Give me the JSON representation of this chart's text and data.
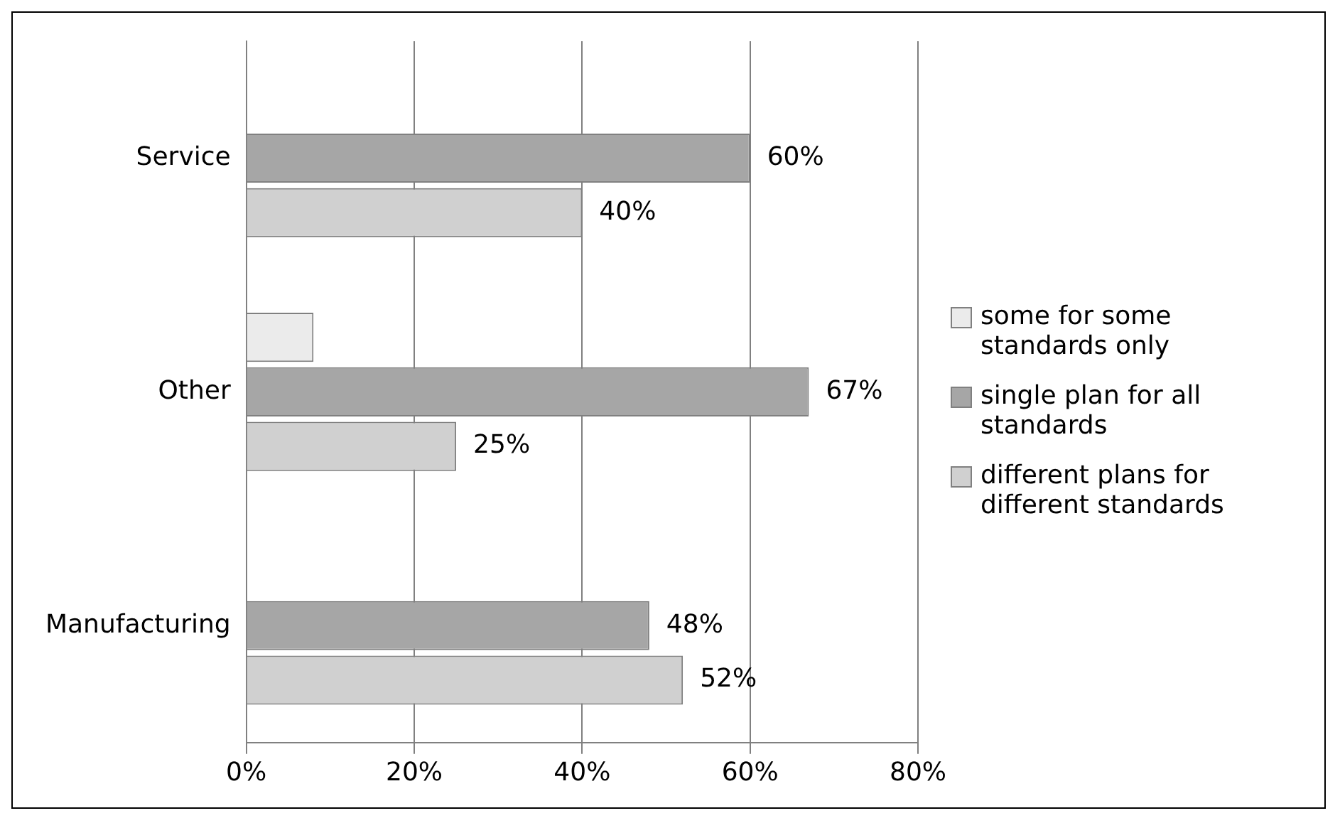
{
  "chart_data": {
    "type": "bar",
    "orientation": "horizontal",
    "categories": [
      "Service",
      "Other",
      "Manufacturing"
    ],
    "series": [
      {
        "name": "some for some standards only",
        "color": "#ebebeb",
        "values": [
          null,
          8,
          null
        ],
        "value_labels": [
          null,
          null,
          null
        ]
      },
      {
        "name": "single plan for all standards",
        "color": "#a6a6a6",
        "values": [
          60,
          67,
          48
        ],
        "value_labels": [
          "60%",
          "67%",
          "48%"
        ]
      },
      {
        "name": "different plans for different standards",
        "color": "#d0d0d0",
        "values": [
          40,
          25,
          52
        ],
        "value_labels": [
          "40%",
          "25%",
          "52%"
        ]
      }
    ],
    "xlim": [
      0,
      80
    ],
    "xticks": [
      {
        "value": 0,
        "label": "0%"
      },
      {
        "value": 20,
        "label": "20%"
      },
      {
        "value": 40,
        "label": "40%"
      },
      {
        "value": 60,
        "label": "60%"
      },
      {
        "value": 80,
        "label": "80%"
      }
    ],
    "grid": "x",
    "legend": "right"
  }
}
